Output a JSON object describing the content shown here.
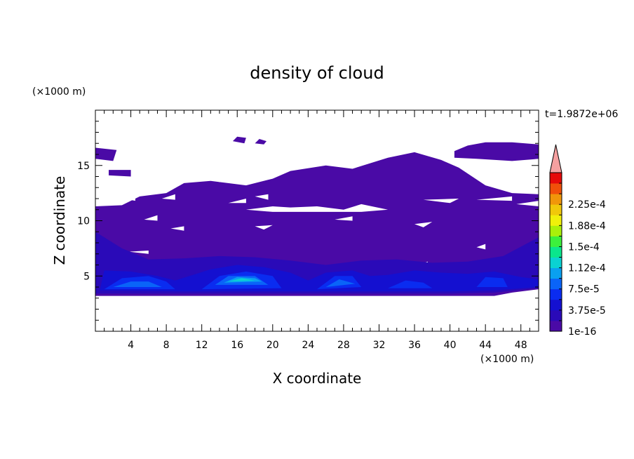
{
  "chart_data": {
    "type": "heatmap",
    "title": "density of cloud",
    "xlabel": "X coordinate",
    "ylabel": "Z coordinate",
    "x_unit": "(×1000 m)",
    "y_unit": "(×1000 m)",
    "time_label": "t=1.9872e+06",
    "xlim": [
      0,
      50
    ],
    "ylim": [
      0,
      20
    ],
    "x_ticks": [
      4,
      8,
      12,
      16,
      20,
      24,
      28,
      32,
      36,
      40,
      44,
      48
    ],
    "y_ticks": [
      5,
      10,
      15
    ],
    "colorbar": {
      "labels": [
        "1e-16",
        "3.75e-5",
        "7.5e-5",
        "1.12e-4",
        "1.5e-4",
        "1.88e-4",
        "2.25e-4"
      ],
      "colors": [
        "#4a0aa6",
        "#2a0ab8",
        "#1410d0",
        "#0a2cf0",
        "#0a64f8",
        "#0aa0f0",
        "#0ad2d2",
        "#0ae68c",
        "#3cf03c",
        "#aaf00a",
        "#f0f00a",
        "#f0c80a",
        "#f0960a",
        "#f0500a",
        "#e60a0a"
      ],
      "extend_color": "#f5a0a0"
    },
    "regions": [
      {
        "level": 1,
        "points": [
          [
            0,
            3.2
          ],
          [
            0,
            11.3
          ],
          [
            3,
            11.4
          ],
          [
            5,
            12.2
          ],
          [
            8,
            12.5
          ],
          [
            10,
            13.4
          ],
          [
            13,
            13.6
          ],
          [
            17,
            13.2
          ],
          [
            20,
            13.8
          ],
          [
            22,
            14.5
          ],
          [
            26,
            15
          ],
          [
            29,
            14.7
          ],
          [
            33,
            15.7
          ],
          [
            36,
            16.2
          ],
          [
            39,
            15.5
          ],
          [
            41,
            14.8
          ],
          [
            44,
            13.2
          ],
          [
            47,
            12.5
          ],
          [
            50,
            12.4
          ],
          [
            50,
            3.8
          ],
          [
            47,
            3.5
          ],
          [
            45,
            3.2
          ],
          [
            40,
            3.2
          ],
          [
            30,
            3.2
          ],
          [
            20,
            3.2
          ],
          [
            10,
            3.2
          ],
          [
            5,
            3.2
          ]
        ]
      },
      {
        "level": 1,
        "points": [
          [
            0,
            15.6
          ],
          [
            2,
            15.4
          ],
          [
            2.4,
            16.4
          ],
          [
            0,
            16.6
          ]
        ]
      },
      {
        "level": 1,
        "points": [
          [
            40.5,
            16.3
          ],
          [
            42,
            16.8
          ],
          [
            44,
            17.1
          ],
          [
            47,
            17.1
          ],
          [
            50,
            16.9
          ],
          [
            50,
            15.6
          ],
          [
            47,
            15.4
          ],
          [
            43,
            15.6
          ],
          [
            40.5,
            15.7
          ]
        ]
      },
      {
        "level": 1,
        "points": [
          [
            1.5,
            14.6
          ],
          [
            4,
            14.6
          ],
          [
            4,
            14.0
          ],
          [
            1.5,
            14.1
          ]
        ]
      },
      {
        "level": 2,
        "points": [
          [
            0,
            3.4
          ],
          [
            0,
            9.0
          ],
          [
            3,
            7.5
          ],
          [
            6,
            6.5
          ],
          [
            10,
            6.6
          ],
          [
            14,
            6.8
          ],
          [
            18,
            6.7
          ],
          [
            22,
            6.4
          ],
          [
            26,
            6.0
          ],
          [
            30,
            6.4
          ],
          [
            34,
            6.5
          ],
          [
            38,
            6.2
          ],
          [
            42,
            6.3
          ],
          [
            46,
            6.8
          ],
          [
            50,
            8.5
          ],
          [
            50,
            3.9
          ],
          [
            45,
            3.5
          ],
          [
            40,
            3.4
          ],
          [
            30,
            3.4
          ],
          [
            20,
            3.4
          ],
          [
            10,
            3.4
          ]
        ]
      },
      {
        "level": 3,
        "points": [
          [
            0.5,
            3.7
          ],
          [
            1,
            5.5
          ],
          [
            4,
            5.4
          ],
          [
            7,
            5.0
          ],
          [
            9,
            4.6
          ],
          [
            11,
            5.1
          ],
          [
            13,
            5.6
          ],
          [
            16,
            6.0
          ],
          [
            19,
            5.8
          ],
          [
            22,
            5.3
          ],
          [
            24,
            4.6
          ],
          [
            26,
            5.3
          ],
          [
            29,
            5.5
          ],
          [
            31,
            5.0
          ],
          [
            33,
            5.1
          ],
          [
            36,
            5.5
          ],
          [
            39,
            5.3
          ],
          [
            42,
            5.2
          ],
          [
            45,
            5.4
          ],
          [
            48,
            4.9
          ],
          [
            50,
            4.7
          ],
          [
            50,
            4.0
          ],
          [
            45,
            3.7
          ],
          [
            40,
            3.6
          ],
          [
            30,
            3.6
          ],
          [
            20,
            3.6
          ],
          [
            10,
            3.6
          ]
        ]
      },
      {
        "level": 4,
        "points": [
          [
            1,
            3.8
          ],
          [
            3,
            4.8
          ],
          [
            6,
            5.0
          ],
          [
            8,
            4.5
          ],
          [
            9,
            3.8
          ]
        ]
      },
      {
        "level": 4,
        "points": [
          [
            12,
            3.8
          ],
          [
            14,
            5.0
          ],
          [
            17,
            5.4
          ],
          [
            20,
            5.0
          ],
          [
            21,
            3.9
          ]
        ]
      },
      {
        "level": 4,
        "points": [
          [
            25,
            3.8
          ],
          [
            27,
            5.0
          ],
          [
            29,
            5.0
          ],
          [
            30,
            4.0
          ]
        ]
      },
      {
        "level": 4,
        "points": [
          [
            33,
            3.9
          ],
          [
            35,
            4.6
          ],
          [
            37,
            4.4
          ],
          [
            38,
            3.9
          ]
        ]
      },
      {
        "level": 4,
        "points": [
          [
            43,
            4.0
          ],
          [
            44,
            4.9
          ],
          [
            46,
            4.8
          ],
          [
            46.5,
            4.0
          ]
        ]
      },
      {
        "level": 5,
        "points": [
          [
            2,
            4.0
          ],
          [
            4,
            4.5
          ],
          [
            6,
            4.5
          ],
          [
            7.5,
            4.0
          ]
        ]
      },
      {
        "level": 5,
        "points": [
          [
            13.5,
            4.2
          ],
          [
            15,
            5.0
          ],
          [
            18,
            5.0
          ],
          [
            19.5,
            4.2
          ]
        ]
      },
      {
        "level": 5,
        "points": [
          [
            26,
            4.0
          ],
          [
            27.5,
            4.7
          ],
          [
            29.3,
            4.3
          ]
        ]
      },
      {
        "level": 6,
        "points": [
          [
            14.5,
            4.4
          ],
          [
            16,
            4.9
          ],
          [
            18,
            4.8
          ],
          [
            18.8,
            4.5
          ]
        ]
      },
      {
        "level": 7,
        "points": [
          [
            15,
            4.5
          ],
          [
            16.5,
            4.8
          ],
          [
            18,
            4.6
          ]
        ]
      }
    ],
    "holes": [
      {
        "points": [
          [
            12,
            14.0
          ],
          [
            14.5,
            14.6
          ],
          [
            16,
            14.0
          ],
          [
            14,
            13.5
          ]
        ]
      },
      {
        "points": [
          [
            16,
            14.2
          ],
          [
            17.5,
            14.8
          ],
          [
            17.5,
            14.0
          ]
        ]
      },
      {
        "points": [
          [
            1,
            12.5
          ],
          [
            0,
            12.2
          ],
          [
            0,
            12.8
          ]
        ]
      },
      {
        "points": [
          [
            3.2,
            12.0
          ],
          [
            4.5,
            12.4
          ],
          [
            4.5,
            11.8
          ]
        ]
      },
      {
        "points": [
          [
            7.5,
            12.0
          ],
          [
            9,
            12.4
          ],
          [
            9,
            11.9
          ]
        ]
      },
      {
        "points": [
          [
            15,
            11.6
          ],
          [
            17,
            12.0
          ],
          [
            17,
            11.6
          ]
        ]
      },
      {
        "points": [
          [
            17,
            11.0
          ],
          [
            20,
            11.3
          ],
          [
            22,
            11.2
          ],
          [
            25,
            11.3
          ],
          [
            28,
            11.0
          ],
          [
            30,
            11.5
          ],
          [
            33,
            11.0
          ],
          [
            30,
            10.8
          ],
          [
            25,
            10.8
          ],
          [
            20,
            10.8
          ]
        ]
      },
      {
        "points": [
          [
            18,
            12.2
          ],
          [
            19.5,
            12.4
          ],
          [
            19.5,
            11.9
          ]
        ]
      },
      {
        "points": [
          [
            37,
            11.9
          ],
          [
            41,
            12.0
          ],
          [
            40,
            11.6
          ]
        ]
      },
      {
        "points": [
          [
            43,
            11.9
          ],
          [
            47,
            12.2
          ],
          [
            47,
            11.8
          ]
        ]
      },
      {
        "points": [
          [
            47.5,
            11.5
          ],
          [
            50,
            11.8
          ],
          [
            50,
            11.3
          ]
        ]
      },
      {
        "points": [
          [
            5.5,
            10.1
          ],
          [
            7,
            10.5
          ],
          [
            7,
            10.0
          ]
        ]
      },
      {
        "points": [
          [
            8.5,
            9.3
          ],
          [
            10,
            9.5
          ],
          [
            10,
            9.1
          ]
        ]
      },
      {
        "points": [
          [
            18,
            9.5
          ],
          [
            20,
            9.6
          ],
          [
            19,
            9.2
          ]
        ]
      },
      {
        "points": [
          [
            27,
            10.1
          ],
          [
            29,
            10.4
          ],
          [
            29,
            10.0
          ]
        ]
      },
      {
        "points": [
          [
            36,
            9.7
          ],
          [
            38,
            9.9
          ],
          [
            37,
            9.4
          ]
        ]
      },
      {
        "points": [
          [
            3.8,
            7.2
          ],
          [
            6,
            7.3
          ],
          [
            6,
            7.0
          ]
        ]
      },
      {
        "points": [
          [
            0.8,
            5.3
          ],
          [
            2.5,
            5.6
          ],
          [
            2,
            5.0
          ]
        ]
      },
      {
        "points": [
          [
            43,
            7.6
          ],
          [
            44,
            7.9
          ],
          [
            44,
            7.4
          ]
        ]
      },
      {
        "points": [
          [
            36.5,
            6.1
          ],
          [
            37.5,
            6.3
          ],
          [
            37.5,
            5.9
          ]
        ]
      },
      {
        "points": [
          [
            46.5,
            5.4
          ],
          [
            48,
            5.6
          ],
          [
            48,
            5.2
          ]
        ]
      }
    ],
    "small_blobs": [
      {
        "level": 1,
        "points": [
          [
            15.5,
            17.2
          ],
          [
            16,
            17.6
          ],
          [
            17,
            17.5
          ],
          [
            16.8,
            17.0
          ]
        ]
      },
      {
        "level": 1,
        "points": [
          [
            18,
            17.0
          ],
          [
            18.5,
            17.4
          ],
          [
            19.3,
            17.2
          ],
          [
            19.0,
            16.9
          ]
        ]
      }
    ]
  }
}
